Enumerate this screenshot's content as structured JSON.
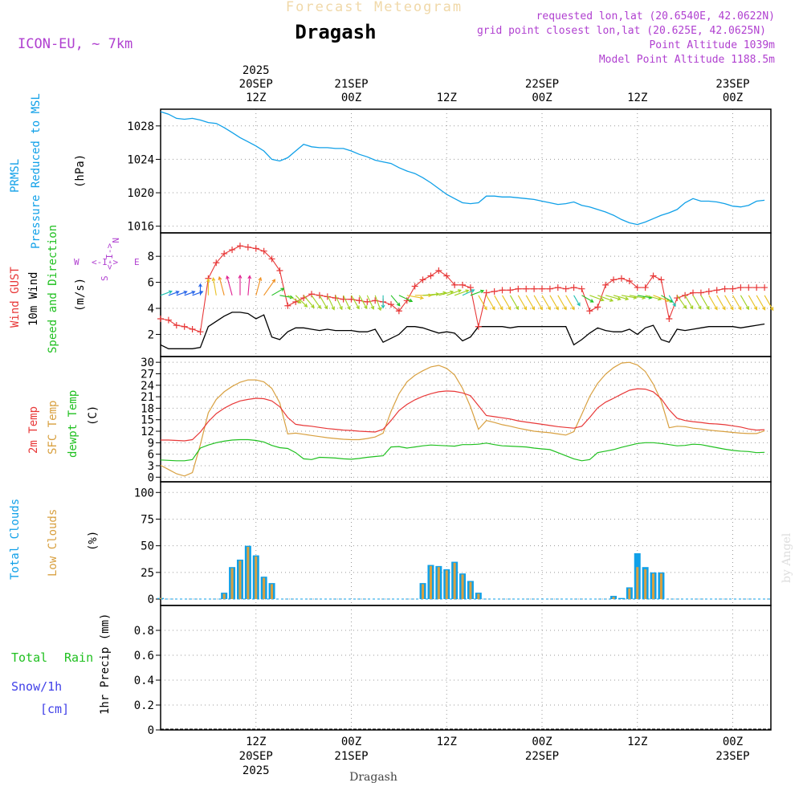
{
  "chart_data": {
    "type": "line",
    "title": "Forecast Meteogram",
    "location": "Dragash",
    "model": "ICON-EU, ~ 7km",
    "requested": "requested lon,lat (20.6540E, 42.0622N)",
    "gridpoint": "grid point closest lon,lat (20.625E, 42.0625N)",
    "point_alt": "Point Altitude 1039m",
    "model_alt": "Model Point Altitude 1188.5m",
    "footer_name": "Dragash",
    "credit": "by Angel",
    "year": "2025",
    "top_ticks": [
      {
        "h": 12,
        "date": "20SEP",
        "time": "12Z"
      },
      {
        "h": 24,
        "date": "21SEP",
        "time": "00Z"
      },
      {
        "h": 36,
        "date": "",
        "time": "12Z"
      },
      {
        "h": 48,
        "date": "22SEP",
        "time": "00Z"
      },
      {
        "h": 60,
        "date": "",
        "time": "12Z"
      },
      {
        "h": 72,
        "date": "23SEP",
        "time": "00Z"
      }
    ],
    "bottom_ticks": [
      {
        "h": 12,
        "time": "12Z",
        "date": "20SEP",
        "year": "2025"
      },
      {
        "h": 24,
        "time": "00Z",
        "date": "21SEP",
        "year": ""
      },
      {
        "h": 36,
        "time": "12Z",
        "date": "",
        "year": ""
      },
      {
        "h": 48,
        "time": "00Z",
        "date": "22SEP",
        "year": ""
      },
      {
        "h": 60,
        "time": "12Z",
        "date": "",
        "year": ""
      },
      {
        "h": 72,
        "time": "00Z",
        "date": "23SEP",
        "year": ""
      }
    ],
    "x_range_hours": [
      0,
      76.8
    ],
    "pressure": {
      "label1": "PRMSL",
      "label2": "Pressure Reduced to MSL",
      "unit": "(hPa)",
      "ylim": [
        1015.2,
        1030
      ],
      "yticks": [
        1016,
        1020,
        1024,
        1028
      ],
      "color": "#10a0e8",
      "x": [
        0,
        1,
        2,
        3,
        4,
        5,
        6,
        7,
        8,
        9,
        10,
        11,
        12,
        13,
        14,
        15,
        16,
        17,
        18,
        19,
        20,
        21,
        22,
        23,
        24,
        25,
        26,
        27,
        28,
        29,
        30,
        31,
        32,
        33,
        34,
        35,
        36,
        37,
        38,
        39,
        40,
        41,
        42,
        43,
        44,
        45,
        46,
        47,
        48,
        49,
        50,
        51,
        52,
        53,
        54,
        55,
        56,
        57,
        58,
        59,
        60,
        61,
        62,
        63,
        64,
        65,
        66,
        67,
        68,
        69,
        70,
        71,
        72,
        73,
        74,
        75,
        76
      ],
      "values": [
        1029.7,
        1029.4,
        1028.9,
        1028.8,
        1028.9,
        1028.7,
        1028.4,
        1028.3,
        1027.8,
        1027.2,
        1026.6,
        1026.1,
        1025.6,
        1025.0,
        1024.0,
        1023.8,
        1024.2,
        1025.0,
        1025.8,
        1025.5,
        1025.4,
        1025.4,
        1025.3,
        1025.3,
        1025.0,
        1024.6,
        1024.3,
        1023.9,
        1023.7,
        1023.5,
        1023.0,
        1022.6,
        1022.3,
        1021.8,
        1021.2,
        1020.5,
        1019.8,
        1019.3,
        1018.8,
        1018.7,
        1018.8,
        1019.6,
        1019.6,
        1019.5,
        1019.5,
        1019.4,
        1019.3,
        1019.2,
        1019.0,
        1018.8,
        1018.6,
        1018.7,
        1018.9,
        1018.5,
        1018.3,
        1018.0,
        1017.7,
        1017.3,
        1016.8,
        1016.4,
        1016.2,
        1016.5,
        1016.9,
        1017.3,
        1017.6,
        1018.0,
        1018.8,
        1019.3,
        1019.0,
        1019.0,
        1018.9,
        1018.7,
        1018.4,
        1018.3,
        1018.5,
        1019.0,
        1019.1
      ]
    },
    "wind": {
      "label_gust": "Wind GUST",
      "label_wind": "10m Wind",
      "label_dir": "Speed and Direction",
      "unit": "(m/s)",
      "compass": {
        "n": "N",
        "s": "S",
        "w": "W",
        "e": "E",
        "arrow": "<-I->"
      },
      "ylim": [
        0.3,
        9.8
      ],
      "yticks": [
        2,
        4,
        6,
        8
      ],
      "gust_color": "#e83838",
      "wind_color": "#000000",
      "x": [
        0,
        1,
        2,
        3,
        4,
        5,
        6,
        7,
        8,
        9,
        10,
        11,
        12,
        13,
        14,
        15,
        16,
        17,
        18,
        19,
        20,
        21,
        22,
        23,
        24,
        25,
        26,
        27,
        28,
        29,
        30,
        31,
        32,
        33,
        34,
        35,
        36,
        37,
        38,
        39,
        40,
        41,
        42,
        43,
        44,
        45,
        46,
        47,
        48,
        49,
        50,
        51,
        52,
        53,
        54,
        55,
        56,
        57,
        58,
        59,
        60,
        61,
        62,
        63,
        64,
        65,
        66,
        67,
        68,
        69,
        70,
        71,
        72,
        73,
        74,
        75,
        76
      ],
      "gust": [
        3.2,
        3.1,
        2.7,
        2.6,
        2.4,
        2.2,
        6.3,
        7.5,
        8.2,
        8.5,
        8.8,
        8.7,
        8.6,
        8.4,
        7.8,
        6.9,
        4.2,
        4.5,
        4.8,
        5.1,
        5.0,
        4.9,
        4.8,
        4.7,
        4.7,
        4.6,
        4.5,
        4.6,
        4.5,
        4.3,
        3.8,
        4.6,
        5.7,
        6.2,
        6.5,
        6.9,
        6.5,
        5.8,
        5.8,
        5.6,
        2.6,
        5.2,
        5.3,
        5.4,
        5.4,
        5.5,
        5.5,
        5.5,
        5.5,
        5.5,
        5.6,
        5.5,
        5.6,
        5.5,
        3.8,
        4.1,
        5.8,
        6.2,
        6.3,
        6.1,
        5.6,
        5.6,
        6.5,
        6.2,
        3.2,
        4.8,
        5.0,
        5.2,
        5.2,
        5.3,
        5.4,
        5.5,
        5.5,
        5.6,
        5.6,
        5.6,
        5.6
      ],
      "speed": [
        1.2,
        0.9,
        0.9,
        0.9,
        0.9,
        1.0,
        2.6,
        3.0,
        3.4,
        3.7,
        3.7,
        3.6,
        3.2,
        3.5,
        1.8,
        1.6,
        2.2,
        2.5,
        2.5,
        2.4,
        2.3,
        2.4,
        2.3,
        2.3,
        2.3,
        2.2,
        2.2,
        2.4,
        1.4,
        1.7,
        2.0,
        2.6,
        2.6,
        2.5,
        2.3,
        2.1,
        2.2,
        2.1,
        1.5,
        1.8,
        2.6,
        2.6,
        2.6,
        2.6,
        2.5,
        2.6,
        2.6,
        2.6,
        2.6,
        2.6,
        2.6,
        2.6,
        1.2,
        1.6,
        2.1,
        2.5,
        2.3,
        2.2,
        2.2,
        2.4,
        2.0,
        2.5,
        2.7,
        1.6,
        1.4,
        2.4,
        2.3,
        2.4,
        2.5,
        2.6,
        2.6,
        2.6,
        2.6,
        2.5,
        2.6,
        2.7,
        2.8
      ],
      "dir_deg": [
        250,
        250,
        250,
        250,
        250,
        180,
        180,
        170,
        165,
        165,
        180,
        185,
        195,
        215,
        240,
        280,
        300,
        315,
        320,
        325,
        330,
        335,
        335,
        335,
        330,
        330,
        335,
        340,
        0,
        320,
        295,
        280,
        270,
        265,
        260,
        255,
        250,
        250,
        245,
        250,
        330,
        330,
        330,
        330,
        330,
        330,
        330,
        330,
        330,
        330,
        330,
        330,
        330,
        300,
        290,
        290,
        285,
        285,
        280,
        280,
        280,
        285,
        290,
        300,
        330,
        325,
        330,
        330,
        330,
        330,
        330,
        330,
        330,
        330,
        330,
        330,
        330
      ]
    },
    "temperature": {
      "label_t2m": "2m Temp",
      "label_sfc": "SFC Temp",
      "label_dew": "dewpt Temp",
      "unit": "(C)",
      "ylim": [
        -1.2,
        31.5
      ],
      "yticks": [
        0,
        3,
        6,
        9,
        12,
        15,
        18,
        21,
        24,
        27,
        30
      ],
      "t2m_color": "#e83838",
      "sfc_color": "#d8a040",
      "dew_color": "#20c020",
      "x": [
        0,
        1,
        2,
        3,
        4,
        5,
        6,
        7,
        8,
        9,
        10,
        11,
        12,
        13,
        14,
        15,
        16,
        17,
        18,
        19,
        20,
        21,
        22,
        23,
        24,
        25,
        26,
        27,
        28,
        29,
        30,
        31,
        32,
        33,
        34,
        35,
        36,
        37,
        38,
        39,
        40,
        41,
        42,
        43,
        44,
        45,
        46,
        47,
        48,
        49,
        50,
        51,
        52,
        53,
        54,
        55,
        56,
        57,
        58,
        59,
        60,
        61,
        62,
        63,
        64,
        65,
        66,
        67,
        68,
        69,
        70,
        71,
        72,
        73,
        74,
        75,
        76
      ],
      "t2m": [
        9.7,
        9.7,
        9.6,
        9.5,
        9.8,
        11.8,
        14.5,
        16.6,
        18.0,
        19.1,
        19.9,
        20.3,
        20.6,
        20.5,
        19.9,
        18.4,
        15.6,
        13.8,
        13.5,
        13.3,
        13.0,
        12.7,
        12.5,
        12.3,
        12.2,
        12.0,
        11.9,
        11.8,
        12.5,
        14.8,
        17.4,
        19.0,
        20.2,
        21.1,
        21.8,
        22.3,
        22.5,
        22.4,
        22.0,
        21.3,
        18.7,
        16.1,
        15.8,
        15.5,
        15.2,
        14.7,
        14.4,
        14.1,
        13.8,
        13.5,
        13.2,
        13.0,
        12.8,
        13.3,
        15.6,
        18.1,
        19.6,
        20.6,
        21.7,
        22.7,
        23.1,
        23.0,
        22.3,
        20.5,
        17.6,
        15.4,
        14.8,
        14.5,
        14.3,
        14.0,
        13.9,
        13.7,
        13.4,
        13.1,
        12.6,
        12.3,
        12.4
      ],
      "sfc": [
        3.1,
        2.0,
        0.9,
        0.3,
        1.2,
        8.5,
        16.8,
        20.3,
        22.3,
        23.7,
        24.8,
        25.4,
        25.4,
        24.9,
        23.2,
        19.4,
        11.3,
        11.5,
        11.2,
        10.9,
        10.6,
        10.3,
        10.1,
        9.9,
        9.8,
        9.8,
        10.1,
        10.5,
        11.5,
        17.2,
        21.8,
        24.9,
        26.6,
        27.8,
        28.8,
        29.2,
        28.4,
        26.7,
        23.2,
        18.4,
        12.5,
        14.8,
        14.3,
        13.7,
        13.3,
        12.8,
        12.4,
        12.0,
        11.8,
        11.6,
        11.3,
        11.0,
        11.9,
        16.4,
        21.1,
        24.5,
        26.9,
        28.6,
        29.8,
        30.0,
        29.3,
        27.6,
        24.3,
        19.9,
        12.9,
        13.3,
        13.2,
        12.8,
        12.6,
        12.3,
        12.1,
        11.9,
        11.7,
        11.5,
        11.4,
        11.4,
        12.1
      ],
      "dew": [
        4.5,
        4.4,
        4.3,
        4.3,
        4.6,
        7.6,
        8.4,
        9.0,
        9.4,
        9.7,
        9.8,
        9.8,
        9.6,
        9.2,
        8.3,
        7.7,
        7.5,
        6.4,
        4.8,
        4.6,
        5.2,
        5.1,
        5.0,
        4.8,
        4.7,
        4.9,
        5.2,
        5.4,
        5.6,
        7.9,
        8.0,
        7.6,
        7.9,
        8.2,
        8.4,
        8.3,
        8.2,
        8.1,
        8.5,
        8.5,
        8.6,
        8.9,
        8.5,
        8.2,
        8.1,
        8.0,
        7.9,
        7.6,
        7.4,
        7.2,
        6.4,
        5.6,
        4.8,
        4.3,
        4.6,
        6.4,
        6.8,
        7.2,
        7.8,
        8.3,
        8.8,
        9.0,
        9.0,
        8.8,
        8.5,
        8.2,
        8.3,
        8.6,
        8.5,
        8.1,
        7.7,
        7.3,
        7.0,
        6.8,
        6.7,
        6.4,
        6.5
      ]
    },
    "clouds": {
      "label_total": "Total Clouds",
      "label_low": "Low Clouds",
      "unit": "(%)",
      "ylim": [
        -6,
        110
      ],
      "yticks": [
        0,
        25,
        50,
        75,
        100
      ],
      "total_color": "#10a0e8",
      "low_color": "#d8a040",
      "x": [
        0,
        1,
        2,
        3,
        4,
        5,
        6,
        7,
        8,
        9,
        10,
        11,
        12,
        13,
        14,
        15,
        16,
        17,
        18,
        19,
        20,
        21,
        22,
        23,
        24,
        25,
        26,
        27,
        28,
        29,
        30,
        31,
        32,
        33,
        34,
        35,
        36,
        37,
        38,
        39,
        40,
        41,
        42,
        43,
        44,
        45,
        46,
        47,
        48,
        49,
        50,
        51,
        52,
        53,
        54,
        55,
        56,
        57,
        58,
        59,
        60,
        61,
        62,
        63,
        64,
        65,
        66,
        67,
        68,
        69,
        70,
        71,
        72,
        73,
        74,
        75,
        76
      ],
      "total": [
        1,
        0,
        0,
        0,
        0,
        0,
        0,
        0,
        6,
        30,
        37,
        50,
        41,
        21,
        15,
        0,
        0,
        0,
        0,
        0,
        0,
        0,
        0,
        0,
        0,
        0,
        0,
        0,
        0,
        0,
        0,
        0,
        0,
        15,
        32,
        31,
        28,
        35,
        24,
        17,
        6,
        0,
        0,
        0,
        0,
        0,
        0,
        0,
        0,
        0,
        0,
        0,
        0,
        0,
        0,
        0,
        0,
        3,
        1,
        11,
        43,
        30,
        25,
        25,
        0,
        0,
        0,
        0,
        0,
        0,
        0,
        0,
        0,
        0,
        0,
        0,
        0
      ],
      "low": [
        1,
        0,
        0,
        0,
        0,
        0,
        0,
        0,
        5,
        29,
        36,
        49,
        40,
        20,
        14,
        0,
        0,
        0,
        0,
        0,
        0,
        0,
        0,
        0,
        0,
        0,
        0,
        0,
        0,
        0,
        0,
        0,
        0,
        14,
        31,
        30,
        27,
        34,
        23,
        16,
        5,
        0,
        0,
        0,
        0,
        0,
        0,
        0,
        0,
        0,
        0,
        0,
        0,
        0,
        0,
        0,
        0,
        2,
        0,
        10,
        30,
        28,
        24,
        24,
        0,
        0,
        0,
        0,
        0,
        0,
        0,
        0,
        0,
        0,
        0,
        0,
        0
      ]
    },
    "precip": {
      "label_total": "Total",
      "label_rain": "Rain",
      "label_snow": "Snow/1h",
      "label_snow_unit": "[cm]",
      "ylabel": "1hr Precip (mm)",
      "ylim": [
        0,
        1.0
      ],
      "yticks": [
        0,
        0.2,
        0.4,
        0.6,
        0.8
      ],
      "ytick_labels": [
        "0",
        "0.2",
        "0.4",
        "0.6",
        "0.8"
      ],
      "values": []
    }
  }
}
